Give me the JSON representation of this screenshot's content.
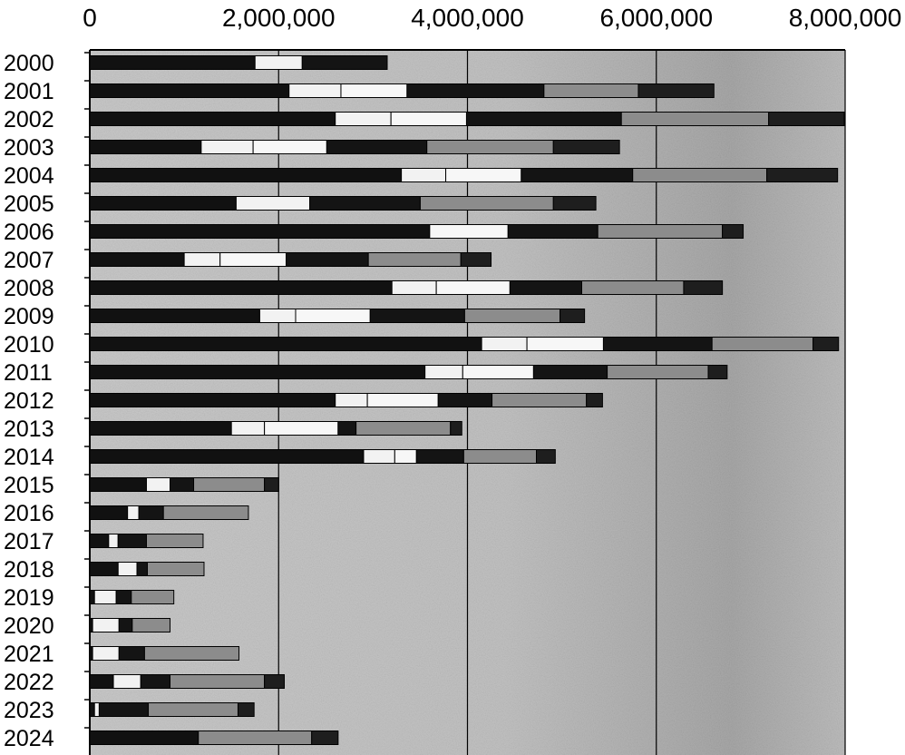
{
  "chart_data": {
    "type": "bar",
    "orientation": "horizontal",
    "stacked": true,
    "title": "",
    "xlabel": "",
    "ylabel": "",
    "xlim": [
      0,
      8000000
    ],
    "x_ticks": [
      "0",
      "2,000,000",
      "4,000,000",
      "6,000,000",
      "8,000,000"
    ],
    "grid": "vertical",
    "legend": "none",
    "categories": [
      "2000",
      "2001",
      "2002",
      "2003",
      "2004",
      "2005",
      "2006",
      "2007",
      "2008",
      "2009",
      "2010",
      "2011",
      "2012",
      "2013",
      "2014",
      "2015",
      "2016",
      "2017",
      "2018",
      "2019",
      "2020",
      "2021",
      "2022",
      "2023",
      "2024"
    ],
    "segment_colors": [
      "#111111",
      "#f2f2f2",
      "#f7f7f7",
      "#141414",
      "#8c8c8c",
      "#1e1e1e"
    ],
    "series": [
      {
        "values": [
          1750000,
          2110000,
          2600000,
          1180000,
          3300000,
          1550000,
          3600000,
          1000000,
          3200000,
          1800000,
          4150000,
          3550000,
          2600000,
          1500000,
          2900000,
          600000,
          400000,
          200000,
          300000,
          50000,
          30000,
          30000,
          250000,
          50000,
          1150000
        ]
      },
      {
        "values": [
          500000,
          550000,
          590000,
          550000,
          470000,
          780000,
          0,
          380000,
          470000,
          380000,
          480000,
          400000,
          340000,
          350000,
          330000,
          250000,
          120000,
          100000,
          200000,
          230000,
          280000,
          280000,
          290000,
          50000,
          0
        ]
      },
      {
        "values": [
          0,
          700000,
          800000,
          780000,
          800000,
          0,
          830000,
          700000,
          780000,
          790000,
          810000,
          750000,
          750000,
          780000,
          230000,
          0,
          0,
          0,
          0,
          0,
          0,
          0,
          0,
          0,
          0
        ]
      },
      {
        "values": [
          900000,
          1450000,
          1640000,
          1060000,
          1180000,
          1170000,
          950000,
          870000,
          760000,
          1000000,
          1150000,
          780000,
          570000,
          190000,
          500000,
          250000,
          260000,
          300000,
          110000,
          160000,
          140000,
          270000,
          310000,
          520000,
          0
        ]
      },
      {
        "values": [
          0,
          1000000,
          1560000,
          1340000,
          1420000,
          1410000,
          1320000,
          980000,
          1080000,
          1010000,
          1070000,
          1070000,
          1000000,
          1000000,
          770000,
          750000,
          900000,
          600000,
          600000,
          450000,
          400000,
          1000000,
          1000000,
          950000,
          1200000
        ]
      },
      {
        "values": [
          0,
          800000,
          800000,
          700000,
          750000,
          450000,
          220000,
          320000,
          410000,
          260000,
          270000,
          200000,
          170000,
          120000,
          200000,
          150000,
          0,
          0,
          0,
          0,
          0,
          0,
          210000,
          170000,
          280000
        ]
      }
    ]
  }
}
